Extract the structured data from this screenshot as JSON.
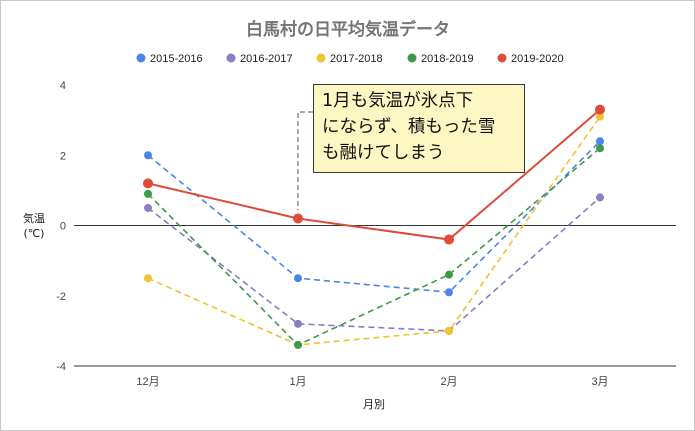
{
  "chart_data": {
    "type": "line",
    "title": "白馬村の日平均気温データ",
    "xlabel": "月別",
    "ylabel": "気温\n(℃)",
    "categories": [
      "12月",
      "1月",
      "2月",
      "3月"
    ],
    "ylim": [
      -4,
      4
    ],
    "yticks": [
      4,
      2,
      0,
      -2,
      -4
    ],
    "grid": false,
    "legend_position": "top",
    "series": [
      {
        "name": "2015-2016",
        "color": "#4a86e8",
        "dashed": true,
        "values": [
          2.0,
          -1.5,
          -1.9,
          2.4
        ]
      },
      {
        "name": "2016-2017",
        "color": "#8e7cc3",
        "dashed": true,
        "values": [
          0.5,
          -2.8,
          -3.0,
          0.8
        ]
      },
      {
        "name": "2017-2018",
        "color": "#f1c232",
        "dashed": true,
        "values": [
          -1.5,
          -3.4,
          -3.0,
          3.1
        ]
      },
      {
        "name": "2018-2019",
        "color": "#3d9a4a",
        "dashed": true,
        "values": [
          0.9,
          -3.4,
          -1.4,
          2.2
        ]
      },
      {
        "name": "2019-2020",
        "color": "#dd4b39",
        "dashed": false,
        "values": [
          1.2,
          0.2,
          -0.4,
          3.3
        ]
      }
    ],
    "annotation": {
      "text": "1月も気温が氷点下\nにならず、積もった雪\nも融けてしまう",
      "category": "1月",
      "value": 0.2
    }
  }
}
